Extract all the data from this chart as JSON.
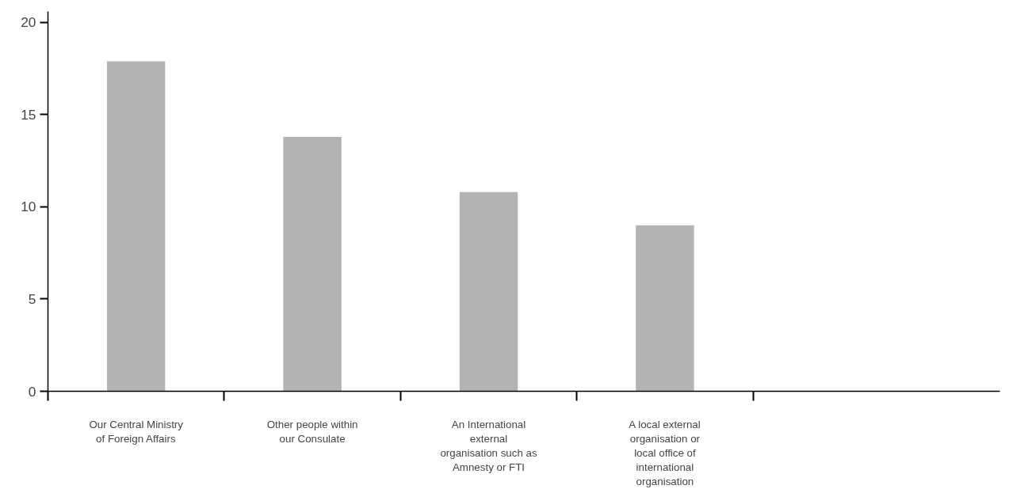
{
  "chart_data": {
    "type": "bar",
    "categories": [
      "Our Central Ministry of Foreign Affairs",
      "Other people within our Consulate",
      "An International external organisation such as Amnesty or FTI",
      "A local external organisation or local office of international organisation"
    ],
    "values": [
      17.9,
      13.8,
      10.8,
      9.0
    ],
    "color": "#b3b3b3",
    "ylim": [
      0,
      20.6
    ],
    "yticks": [
      0,
      5,
      10,
      15,
      20
    ],
    "grid": false
  }
}
